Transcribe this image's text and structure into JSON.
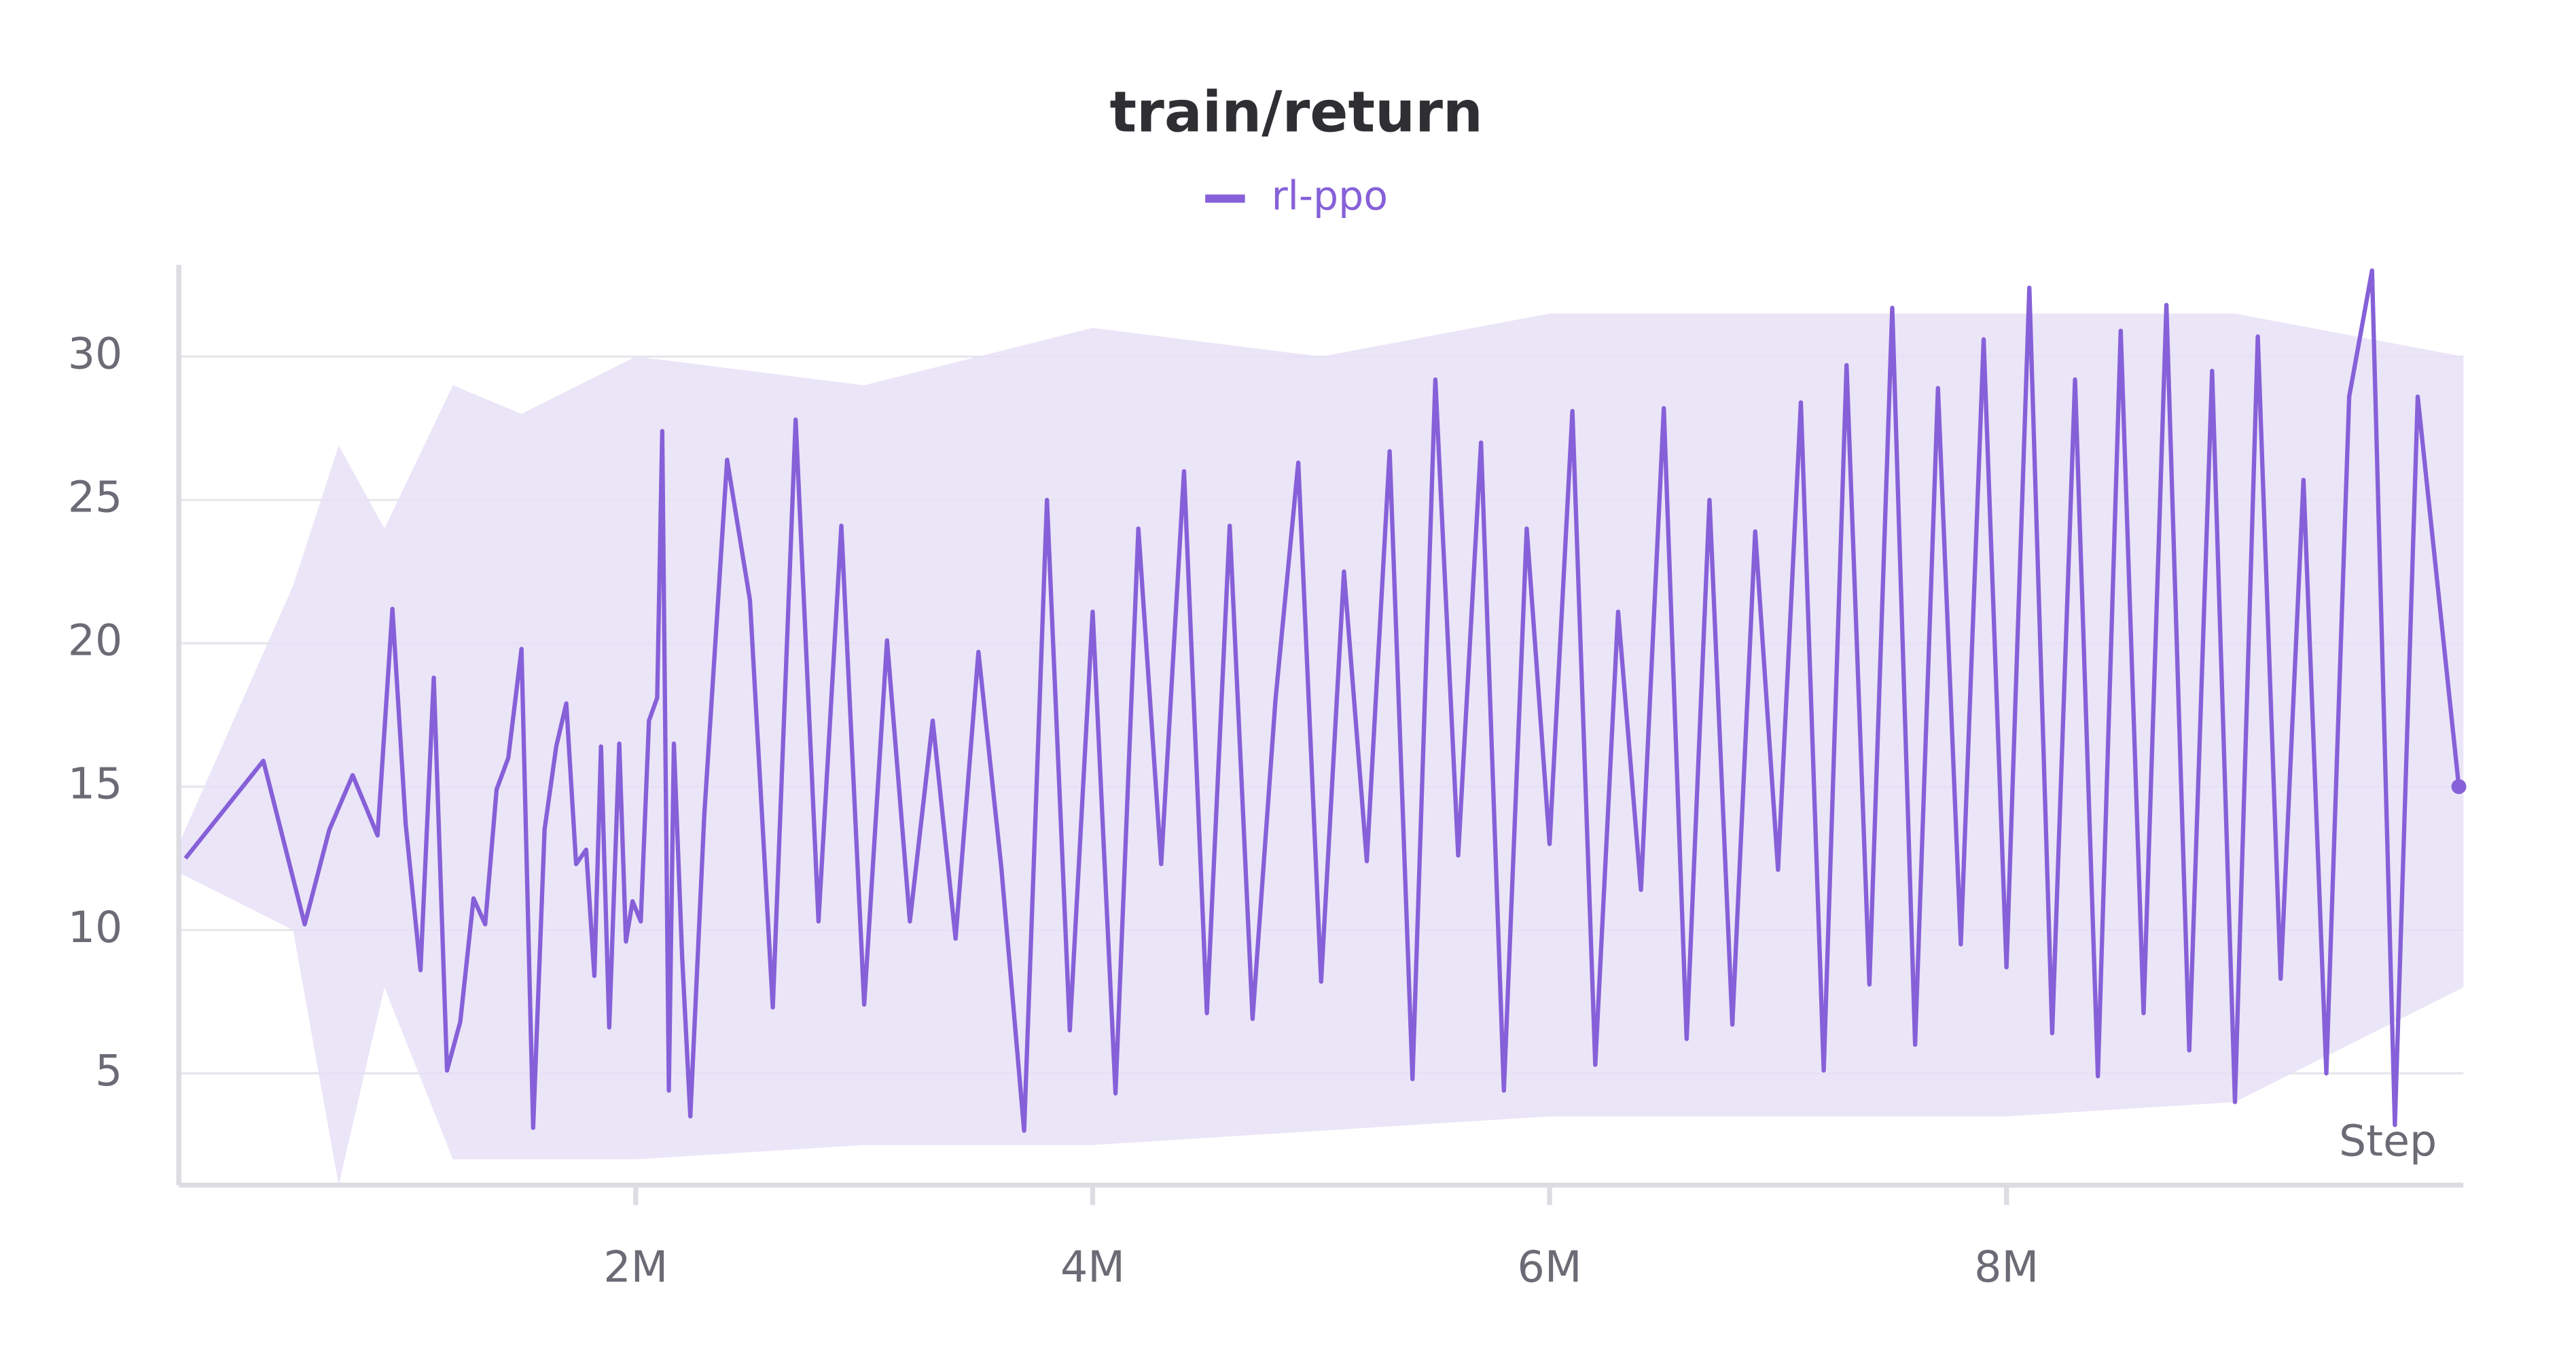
{
  "chart_data": {
    "type": "line",
    "title": "train/return",
    "x_label": "Step",
    "grid": true,
    "xlim": [
      0,
      10000000
    ],
    "ylim": [
      1.1,
      33.2
    ],
    "xticks": [
      {
        "value": 2000000,
        "label": "2M"
      },
      {
        "value": 4000000,
        "label": "4M"
      },
      {
        "value": 6000000,
        "label": "6M"
      },
      {
        "value": 8000000,
        "label": "8M"
      }
    ],
    "yticks": [
      5,
      10,
      15,
      20,
      25,
      30
    ],
    "series": [
      {
        "name": "rl-ppo",
        "color": "#8660d8",
        "x": [
          29000,
          370000,
          551000,
          659000,
          761000,
          870000,
          935000,
          993000,
          1058000,
          1116000,
          1174000,
          1232000,
          1290000,
          1341000,
          1391000,
          1442000,
          1500000,
          1551000,
          1601000,
          1652000,
          1696000,
          1739000,
          1783000,
          1819000,
          1848000,
          1884000,
          1928000,
          1957000,
          1986000,
          2022000,
          2058000,
          2094000,
          2116000,
          2145000,
          2167000,
          2203000,
          2239000,
          2300000,
          2400000,
          2500000,
          2600000,
          2700000,
          2800000,
          2900000,
          3000000,
          3100000,
          3200000,
          3300000,
          3400000,
          3500000,
          3600000,
          3700000,
          3800000,
          3900000,
          4000000,
          4100000,
          4200000,
          4300000,
          4400000,
          4500000,
          4600000,
          4700000,
          4800000,
          4900000,
          5000000,
          5100000,
          5200000,
          5300000,
          5400000,
          5500000,
          5600000,
          5700000,
          5800000,
          5900000,
          6000000,
          6100000,
          6200000,
          6300000,
          6400000,
          6500000,
          6600000,
          6700000,
          6800000,
          6900000,
          7000000,
          7100000,
          7200000,
          7300000,
          7400000,
          7500000,
          7600000,
          7700000,
          7800000,
          7900000,
          8000000,
          8100000,
          8200000,
          8300000,
          8400000,
          8500000,
          8600000,
          8700000,
          8800000,
          8900000,
          9000000,
          9100000,
          9200000,
          9300000,
          9400000,
          9500000,
          9600000,
          9700000,
          9800000,
          9980000
        ],
        "values": [
          12.5,
          15.9,
          10.2,
          13.5,
          15.4,
          13.3,
          21.2,
          13.7,
          8.6,
          18.8,
          5.1,
          6.8,
          11.1,
          10.2,
          14.9,
          16.0,
          19.8,
          3.1,
          13.5,
          16.4,
          17.9,
          12.3,
          12.8,
          8.4,
          16.4,
          6.6,
          16.5,
          9.6,
          11.0,
          10.3,
          17.3,
          18.1,
          27.4,
          4.4,
          16.5,
          9.1,
          3.5,
          14,
          26.4,
          21.5,
          7.3,
          27.8,
          10.3,
          24.1,
          7.4,
          20.1,
          10.3,
          17.3,
          9.7,
          19.7,
          12.2,
          3.0,
          25.0,
          6.5,
          21.1,
          4.3,
          24.0,
          12.3,
          26.0,
          7.1,
          24.1,
          6.9,
          18.0,
          26.3,
          8.2,
          22.5,
          12.4,
          26.7,
          4.8,
          29.2,
          12.6,
          27.0,
          4.4,
          24.0,
          13.0,
          28.1,
          5.3,
          21.1,
          11.4,
          28.2,
          6.2,
          25.0,
          6.7,
          23.9,
          12.1,
          28.4,
          5.1,
          29.7,
          8.1,
          31.7,
          6.0,
          28.9,
          9.5,
          30.6,
          8.7,
          32.4,
          6.4,
          29.2,
          4.9,
          30.9,
          7.1,
          31.8,
          5.8,
          29.5,
          4.0,
          30.7,
          8.3,
          25.7,
          5.0,
          28.6,
          33.0,
          3.2,
          28.6,
          15.0
        ]
      }
    ],
    "band": {
      "color": "#e7e0f7",
      "x": [
        0,
        500000,
        700000,
        900000,
        1200000,
        1500000,
        2000000,
        3000000,
        4000000,
        5000000,
        6000000,
        7000000,
        8000000,
        9000000,
        10000000
      ],
      "upper": [
        13,
        22,
        26.9,
        24,
        29,
        28,
        30,
        29,
        31,
        30,
        31.5,
        31.5,
        31.5,
        31.5,
        30
      ],
      "lower": [
        12,
        10,
        1.1,
        8,
        2,
        2,
        2,
        2.5,
        2.5,
        3,
        3.5,
        3.5,
        3.5,
        4,
        8
      ]
    }
  }
}
